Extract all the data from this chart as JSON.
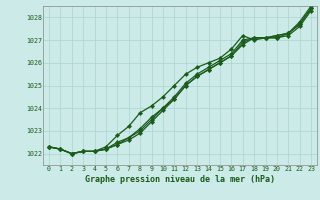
{
  "title": "Graphe pression niveau de la mer (hPa)",
  "bg_color": "#cceae7",
  "grid_color": "#aad4d0",
  "line_color": "#1a5c1a",
  "xlim": [
    -0.5,
    23.5
  ],
  "ylim": [
    1021.5,
    1028.5
  ],
  "xticks": [
    0,
    1,
    2,
    3,
    4,
    5,
    6,
    7,
    8,
    9,
    10,
    11,
    12,
    13,
    14,
    15,
    16,
    17,
    18,
    19,
    20,
    21,
    22,
    23
  ],
  "yticks": [
    1022,
    1023,
    1024,
    1025,
    1026,
    1027,
    1028
  ],
  "series": [
    [
      1022.3,
      1022.2,
      1022.0,
      1022.1,
      1022.1,
      1022.2,
      1022.5,
      1022.7,
      1023.1,
      1023.6,
      1024.0,
      1024.4,
      1025.0,
      1025.4,
      1025.7,
      1026.0,
      1026.3,
      1026.8,
      1027.1,
      1027.1,
      1027.1,
      1027.2,
      1027.6,
      1028.3
    ],
    [
      1022.3,
      1022.2,
      1022.0,
      1022.1,
      1022.1,
      1022.2,
      1022.4,
      1022.7,
      1023.0,
      1023.5,
      1024.0,
      1024.5,
      1025.1,
      1025.5,
      1025.8,
      1026.1,
      1026.4,
      1027.0,
      1027.1,
      1027.1,
      1027.2,
      1027.3,
      1027.7,
      1028.4
    ],
    [
      1022.3,
      1022.2,
      1022.0,
      1022.1,
      1022.1,
      1022.3,
      1022.8,
      1023.2,
      1023.8,
      1024.1,
      1024.5,
      1025.0,
      1025.5,
      1025.8,
      1026.0,
      1026.2,
      1026.6,
      1027.2,
      1027.0,
      1027.1,
      1027.1,
      1027.3,
      1027.8,
      1028.5
    ],
    [
      1022.3,
      1022.2,
      1022.0,
      1022.1,
      1022.1,
      1022.2,
      1022.4,
      1022.6,
      1022.9,
      1023.4,
      1023.9,
      1024.4,
      1025.0,
      1025.4,
      1025.7,
      1026.0,
      1026.3,
      1026.9,
      1027.1,
      1027.1,
      1027.2,
      1027.3,
      1027.7,
      1028.4
    ]
  ]
}
